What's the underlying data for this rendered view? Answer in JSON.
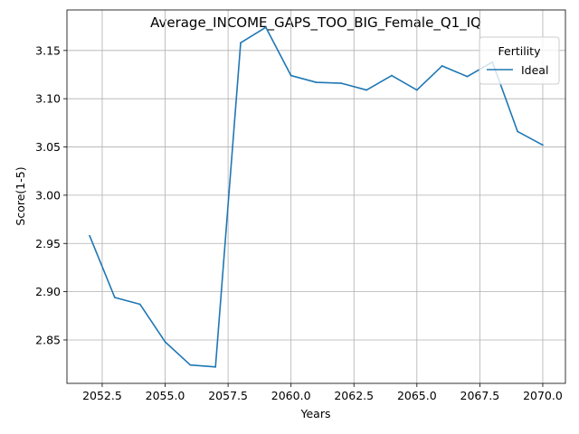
{
  "chart_data": {
    "type": "line",
    "title": "Average_INCOME_GAPS_TOO_BIG_Female_Q1_IQ",
    "xlabel": "Years",
    "ylabel": "Score(1-5)",
    "xlim": [
      2051.1,
      2070.9
    ],
    "ylim": [
      2.805,
      3.192
    ],
    "xticks": [
      2052.5,
      2055.0,
      2057.5,
      2060.0,
      2062.5,
      2065.0,
      2067.5,
      2070.0
    ],
    "xtick_labels": [
      "2052.5",
      "2055.0",
      "2057.5",
      "2060.0",
      "2062.5",
      "2065.0",
      "2067.5",
      "2070.0"
    ],
    "yticks": [
      2.85,
      2.9,
      2.95,
      3.0,
      3.05,
      3.1,
      3.15
    ],
    "ytick_labels": [
      "2.85",
      "2.90",
      "2.95",
      "3.00",
      "3.05",
      "3.10",
      "3.15"
    ],
    "grid": true,
    "legend": {
      "title": "Fertility",
      "placement": "top-right"
    },
    "series": [
      {
        "name": "Ideal",
        "color": "#1f77b4",
        "x": [
          2052,
          2053,
          2054,
          2055,
          2056,
          2057,
          2058,
          2059,
          2060,
          2061,
          2062,
          2063,
          2064,
          2065,
          2066,
          2067,
          2068,
          2069,
          2070
        ],
        "y": [
          2.958,
          2.894,
          2.887,
          2.848,
          2.824,
          2.822,
          3.158,
          3.174,
          3.124,
          3.117,
          3.116,
          3.109,
          3.124,
          3.109,
          3.134,
          3.123,
          3.138,
          3.066,
          3.052
        ]
      }
    ]
  }
}
